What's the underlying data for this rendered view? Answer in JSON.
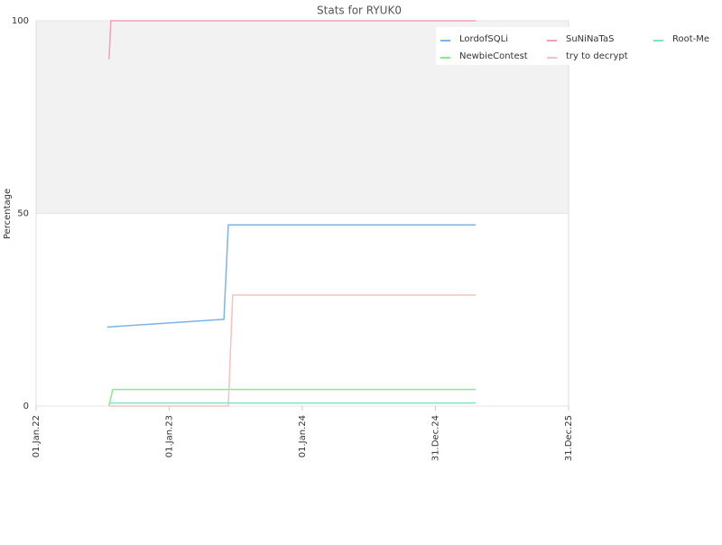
{
  "chart_data": {
    "type": "line",
    "title": "Stats for RYUK0",
    "y_label": "Percentage",
    "xlim": [
      "2022-01-01",
      "2025-12-31"
    ],
    "xticks": [
      {
        "value": "2022-01-01",
        "label": "01.Jan.22"
      },
      {
        "value": "2023-01-01",
        "label": "01.Jan.23"
      },
      {
        "value": "2024-01-01",
        "label": "01.Jan.24"
      },
      {
        "value": "2024-12-31",
        "label": "31.Dec.24"
      },
      {
        "value": "2025-12-31",
        "label": "31.Dec.25"
      }
    ],
    "ylim": [
      0,
      100
    ],
    "yticks": [
      0,
      50,
      100
    ],
    "series": [
      {
        "name": "LordofSQLi",
        "color": "#7db4e6",
        "x": [
          "2022-07-15",
          "2023-05-31",
          "2023-06-12",
          "2025-04-20"
        ],
        "values": [
          20.5,
          22.5,
          47,
          47
        ]
      },
      {
        "name": "NewbieContest",
        "color": "#8ee68e",
        "x": [
          "2022-07-20",
          "2022-07-30",
          "2025-04-20"
        ],
        "values": [
          0,
          4.3,
          4.3
        ]
      },
      {
        "name": "SuNiNaTaS",
        "color": "#f0a0b8",
        "x": [
          "2022-07-20",
          "2022-07-25",
          "2025-04-20"
        ],
        "values": [
          90,
          100,
          100
        ]
      },
      {
        "name": "try to decrypt",
        "color": "#f8c0c0",
        "x": [
          "2022-07-20",
          "2023-06-12",
          "2023-06-24",
          "2025-04-20"
        ],
        "values": [
          0,
          0,
          28.8,
          28.8
        ]
      },
      {
        "name": "Root-Me",
        "color": "#80e0c8",
        "x": [
          "2022-07-20",
          "2025-04-20"
        ],
        "values": [
          0.8,
          0.8
        ]
      }
    ]
  }
}
